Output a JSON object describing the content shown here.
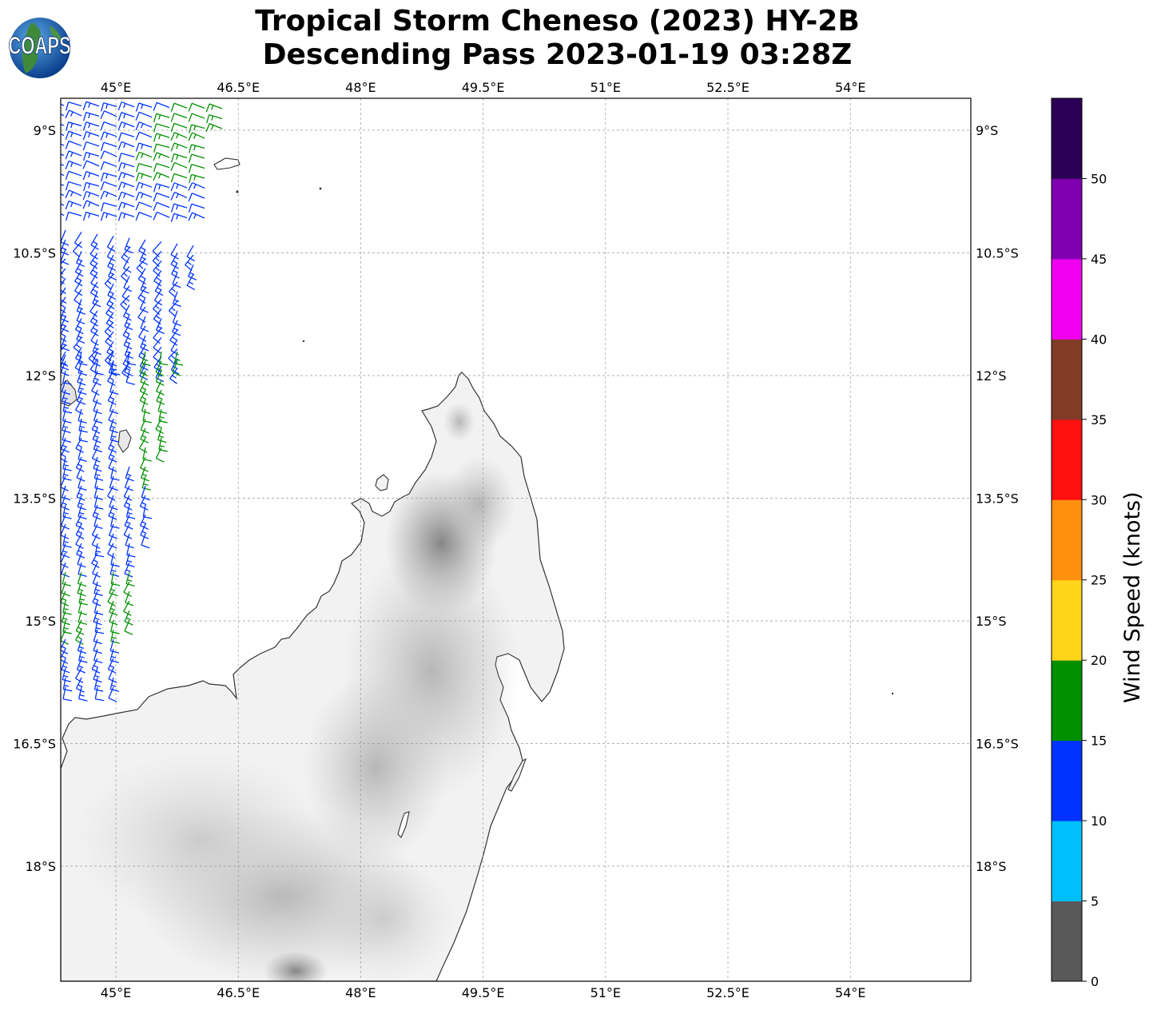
{
  "title": {
    "line1": "Tropical Storm Cheneso (2023) HY-2B",
    "line2": "Descending Pass 2023-01-19 03:28Z"
  },
  "logo": {
    "text": "COAPS",
    "icon": "globe-logo-icon"
  },
  "map": {
    "lon_ticks": [
      "45°E",
      "46.5°E",
      "48°E",
      "49.5°E",
      "51°E",
      "52.5°E",
      "54°E"
    ],
    "lat_ticks": [
      "9°S",
      "10.5°S",
      "12°S",
      "13.5°S",
      "15°S",
      "16.5°S",
      "18°S"
    ],
    "lon_range": [
      44.33,
      55.5
    ],
    "lat_range": [
      -19.4,
      -8.6
    ],
    "land_shading": "grayscale elevation",
    "gridlines": true
  },
  "colorbar": {
    "label": "Wind Speed (knots)",
    "ticks": [
      "0",
      "5",
      "10",
      "15",
      "20",
      "25",
      "30",
      "35",
      "40",
      "45",
      "50"
    ],
    "bins": [
      {
        "range": [
          0,
          5
        ],
        "color": "#595959"
      },
      {
        "range": [
          5,
          10
        ],
        "color": "#00bfff"
      },
      {
        "range": [
          10,
          15
        ],
        "color": "#0033ff"
      },
      {
        "range": [
          15,
          20
        ],
        "color": "#009000"
      },
      {
        "range": [
          20,
          25
        ],
        "color": "#ffd41a"
      },
      {
        "range": [
          25,
          30
        ],
        "color": "#ff900d"
      },
      {
        "range": [
          30,
          35
        ],
        "color": "#ff1111"
      },
      {
        "range": [
          35,
          40
        ],
        "color": "#823c28"
      },
      {
        "range": [
          40,
          45
        ],
        "color": "#f000f0"
      },
      {
        "range": [
          45,
          50
        ],
        "color": "#8000b0"
      },
      {
        "range": [
          50,
          55
        ],
        "color": "#2d0058"
      }
    ]
  },
  "wind_barbs": {
    "blue_speed_knots": "10-15",
    "green_speed_knots": "15-20",
    "colors": {
      "blue": "#0033ff",
      "green": "#009000"
    }
  }
}
